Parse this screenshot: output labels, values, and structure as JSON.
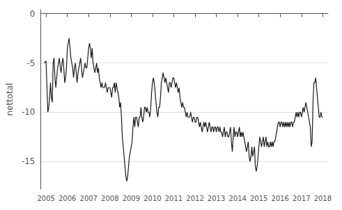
{
  "chart_data": {
    "type": "line",
    "ylabel": "nettotal",
    "color": "#1a1a1a",
    "grid": true,
    "xlim": [
      2004.75,
      2018.25
    ],
    "ylim": [
      -17.8,
      0.4
    ],
    "xticks": [
      2005,
      2006,
      2007,
      2008,
      2009,
      2010,
      2011,
      2012,
      2013,
      2014,
      2015,
      2016,
      2017,
      2018
    ],
    "yticks": [
      0,
      -5,
      -10,
      -15
    ],
    "x": [
      2004.917,
      2005.0,
      2005.042,
      2005.083,
      2005.125,
      2005.167,
      2005.208,
      2005.25,
      2005.292,
      2005.333,
      2005.375,
      2005.417,
      2005.458,
      2005.5,
      2005.542,
      2005.583,
      2005.625,
      2005.667,
      2005.708,
      2005.75,
      2005.792,
      2005.833,
      2005.875,
      2005.917,
      2005.958,
      2006.0,
      2006.042,
      2006.083,
      2006.125,
      2006.167,
      2006.208,
      2006.25,
      2006.292,
      2006.333,
      2006.375,
      2006.417,
      2006.458,
      2006.5,
      2006.542,
      2006.583,
      2006.625,
      2006.667,
      2006.708,
      2006.75,
      2006.792,
      2006.833,
      2006.875,
      2006.917,
      2006.958,
      2007.0,
      2007.042,
      2007.083,
      2007.125,
      2007.167,
      2007.208,
      2007.25,
      2007.292,
      2007.333,
      2007.375,
      2007.417,
      2007.458,
      2007.5,
      2007.542,
      2007.583,
      2007.625,
      2007.667,
      2007.708,
      2007.75,
      2007.792,
      2007.833,
      2007.875,
      2007.917,
      2007.958,
      2008.0,
      2008.042,
      2008.083,
      2008.125,
      2008.167,
      2008.208,
      2008.25,
      2008.292,
      2008.333,
      2008.375,
      2008.417,
      2008.458,
      2008.5,
      2008.542,
      2008.583,
      2008.625,
      2008.667,
      2008.708,
      2008.75,
      2008.792,
      2008.833,
      2008.875,
      2008.917,
      2008.958,
      2009.0,
      2009.042,
      2009.083,
      2009.125,
      2009.167,
      2009.208,
      2009.25,
      2009.292,
      2009.333,
      2009.375,
      2009.417,
      2009.458,
      2009.5,
      2009.542,
      2009.583,
      2009.625,
      2009.667,
      2009.708,
      2009.75,
      2009.792,
      2009.833,
      2009.875,
      2009.917,
      2009.958,
      2010.0,
      2010.042,
      2010.083,
      2010.125,
      2010.167,
      2010.208,
      2010.25,
      2010.292,
      2010.333,
      2010.375,
      2010.417,
      2010.458,
      2010.5,
      2010.542,
      2010.583,
      2010.625,
      2010.667,
      2010.708,
      2010.75,
      2010.792,
      2010.833,
      2010.875,
      2010.917,
      2010.958,
      2011.0,
      2011.042,
      2011.083,
      2011.125,
      2011.167,
      2011.208,
      2011.25,
      2011.292,
      2011.333,
      2011.375,
      2011.417,
      2011.458,
      2011.5,
      2011.542,
      2011.583,
      2011.625,
      2011.667,
      2011.708,
      2011.75,
      2011.792,
      2011.833,
      2011.875,
      2011.917,
      2011.958,
      2012.0,
      2012.042,
      2012.083,
      2012.125,
      2012.167,
      2012.208,
      2012.25,
      2012.292,
      2012.333,
      2012.375,
      2012.417,
      2012.458,
      2012.5,
      2012.542,
      2012.583,
      2012.625,
      2012.667,
      2012.708,
      2012.75,
      2012.792,
      2012.833,
      2012.875,
      2012.917,
      2012.958,
      2013.0,
      2013.042,
      2013.083,
      2013.125,
      2013.167,
      2013.208,
      2013.25,
      2013.292,
      2013.333,
      2013.375,
      2013.417,
      2013.458,
      2013.5,
      2013.542,
      2013.583,
      2013.625,
      2013.667,
      2013.708,
      2013.75,
      2013.792,
      2013.833,
      2013.875,
      2013.917,
      2013.958,
      2014.0,
      2014.042,
      2014.083,
      2014.125,
      2014.167,
      2014.208,
      2014.25,
      2014.292,
      2014.333,
      2014.375,
      2014.417,
      2014.458,
      2014.5,
      2014.542,
      2014.583,
      2014.625,
      2014.667,
      2014.708,
      2014.75,
      2014.792,
      2014.833,
      2014.875,
      2014.917,
      2014.958,
      2015.0,
      2015.042,
      2015.083,
      2015.125,
      2015.167,
      2015.208,
      2015.25,
      2015.292,
      2015.333,
      2015.375,
      2015.417,
      2015.458,
      2015.5,
      2015.542,
      2015.583,
      2015.625,
      2015.667,
      2015.708,
      2015.75,
      2015.792,
      2015.833,
      2015.875,
      2015.917,
      2015.958,
      2016.0,
      2016.042,
      2016.083,
      2016.125,
      2016.167,
      2016.208,
      2016.25,
      2016.292,
      2016.333,
      2016.375,
      2016.417,
      2016.458,
      2016.5,
      2016.542,
      2016.583,
      2016.625,
      2016.667,
      2016.708,
      2016.75,
      2016.792,
      2016.833,
      2016.875,
      2016.917,
      2016.958,
      2017.0,
      2017.042,
      2017.083,
      2017.125,
      2017.167,
      2017.208,
      2017.25,
      2017.292,
      2017.333,
      2017.375,
      2017.417,
      2017.458,
      2017.5,
      2017.542,
      2017.583,
      2017.625,
      2017.667,
      2017.708,
      2017.75,
      2017.792,
      2017.833,
      2017.875,
      2017.917,
      2017.958,
      2018.0
    ],
    "values": [
      -5.0,
      -4.8,
      -7.5,
      -10.0,
      -9.5,
      -8.5,
      -7.0,
      -8.5,
      -9.0,
      -5.0,
      -4.5,
      -6.5,
      -7.5,
      -6.5,
      -5.5,
      -5.0,
      -4.5,
      -5.5,
      -6.0,
      -5.0,
      -4.5,
      -5.5,
      -7.0,
      -6.5,
      -5.5,
      -3.5,
      -3.0,
      -2.5,
      -3.5,
      -4.5,
      -5.0,
      -5.5,
      -6.5,
      -5.5,
      -5.0,
      -6.0,
      -7.0,
      -6.0,
      -5.5,
      -5.0,
      -4.5,
      -5.5,
      -6.5,
      -6.0,
      -5.5,
      -5.0,
      -5.5,
      -5.5,
      -4.5,
      -3.5,
      -3.0,
      -3.5,
      -4.5,
      -3.5,
      -5.0,
      -5.5,
      -6.0,
      -5.5,
      -5.0,
      -6.0,
      -5.5,
      -6.5,
      -7.0,
      -7.5,
      -7.0,
      -7.5,
      -7.5,
      -7.5,
      -7.0,
      -7.5,
      -8.0,
      -7.5,
      -7.5,
      -7.5,
      -8.0,
      -8.5,
      -7.5,
      -7.5,
      -7.0,
      -8.0,
      -7.0,
      -7.5,
      -8.0,
      -8.5,
      -9.5,
      -9.0,
      -10.5,
      -12.5,
      -13.5,
      -14.5,
      -15.5,
      -16.5,
      -17.0,
      -16.5,
      -15.5,
      -14.5,
      -14.0,
      -13.5,
      -13.0,
      -11.5,
      -10.5,
      -11.5,
      -10.5,
      -10.5,
      -11.0,
      -11.5,
      -10.5,
      -10.5,
      -9.5,
      -10.5,
      -11.0,
      -10.5,
      -9.5,
      -9.5,
      -10.0,
      -9.5,
      -10.0,
      -10.0,
      -10.5,
      -9.5,
      -8.0,
      -7.0,
      -6.5,
      -7.0,
      -8.0,
      -9.0,
      -10.0,
      -10.5,
      -9.5,
      -9.5,
      -8.5,
      -7.0,
      -6.5,
      -6.0,
      -6.5,
      -7.0,
      -6.5,
      -7.0,
      -7.5,
      -8.0,
      -7.0,
      -7.0,
      -7.5,
      -7.0,
      -6.5,
      -6.5,
      -7.0,
      -7.5,
      -7.0,
      -7.5,
      -8.0,
      -7.5,
      -8.5,
      -9.0,
      -9.5,
      -9.0,
      -9.5,
      -9.5,
      -10.0,
      -10.5,
      -10.0,
      -10.5,
      -10.5,
      -10.5,
      -10.0,
      -10.5,
      -11.0,
      -10.5,
      -10.5,
      -11.0,
      -11.0,
      -10.5,
      -10.5,
      -11.0,
      -11.5,
      -11.0,
      -11.5,
      -12.0,
      -11.5,
      -11.0,
      -11.5,
      -11.0,
      -11.5,
      -12.0,
      -11.5,
      -11.0,
      -11.5,
      -12.0,
      -11.5,
      -11.5,
      -12.0,
      -11.5,
      -11.5,
      -12.0,
      -11.5,
      -11.5,
      -12.0,
      -11.5,
      -12.0,
      -12.0,
      -12.5,
      -12.0,
      -11.5,
      -12.5,
      -12.0,
      -12.0,
      -12.5,
      -12.5,
      -12.0,
      -11.5,
      -13.0,
      -14.0,
      -12.5,
      -11.5,
      -12.5,
      -12.0,
      -12.0,
      -12.5,
      -12.0,
      -11.5,
      -12.5,
      -12.0,
      -12.5,
      -12.0,
      -12.5,
      -13.0,
      -13.5,
      -14.0,
      -13.5,
      -13.0,
      -14.5,
      -15.0,
      -14.5,
      -13.5,
      -14.5,
      -14.0,
      -13.5,
      -15.5,
      -16.0,
      -15.5,
      -14.5,
      -13.5,
      -12.5,
      -13.0,
      -13.5,
      -13.0,
      -12.5,
      -13.5,
      -13.0,
      -12.5,
      -13.5,
      -13.0,
      -13.5,
      -13.5,
      -13.0,
      -13.5,
      -13.0,
      -13.5,
      -13.0,
      -13.0,
      -12.5,
      -12.0,
      -11.5,
      -11.0,
      -11.0,
      -11.5,
      -11.0,
      -11.0,
      -11.5,
      -11.0,
      -11.5,
      -11.0,
      -11.5,
      -11.0,
      -11.5,
      -11.0,
      -11.5,
      -11.0,
      -11.0,
      -11.5,
      -11.0,
      -11.0,
      -10.5,
      -10.0,
      -10.5,
      -10.0,
      -10.5,
      -10.0,
      -10.0,
      -10.5,
      -10.0,
      -9.5,
      -10.0,
      -9.5,
      -9.0,
      -9.5,
      -10.0,
      -10.5,
      -11.0,
      -11.5,
      -13.5,
      -13.0,
      -9.0,
      -7.0,
      -7.0,
      -6.5,
      -7.5,
      -8.5,
      -9.5,
      -10.5,
      -10.5,
      -10.0,
      -10.5,
      -10.5
    ]
  }
}
